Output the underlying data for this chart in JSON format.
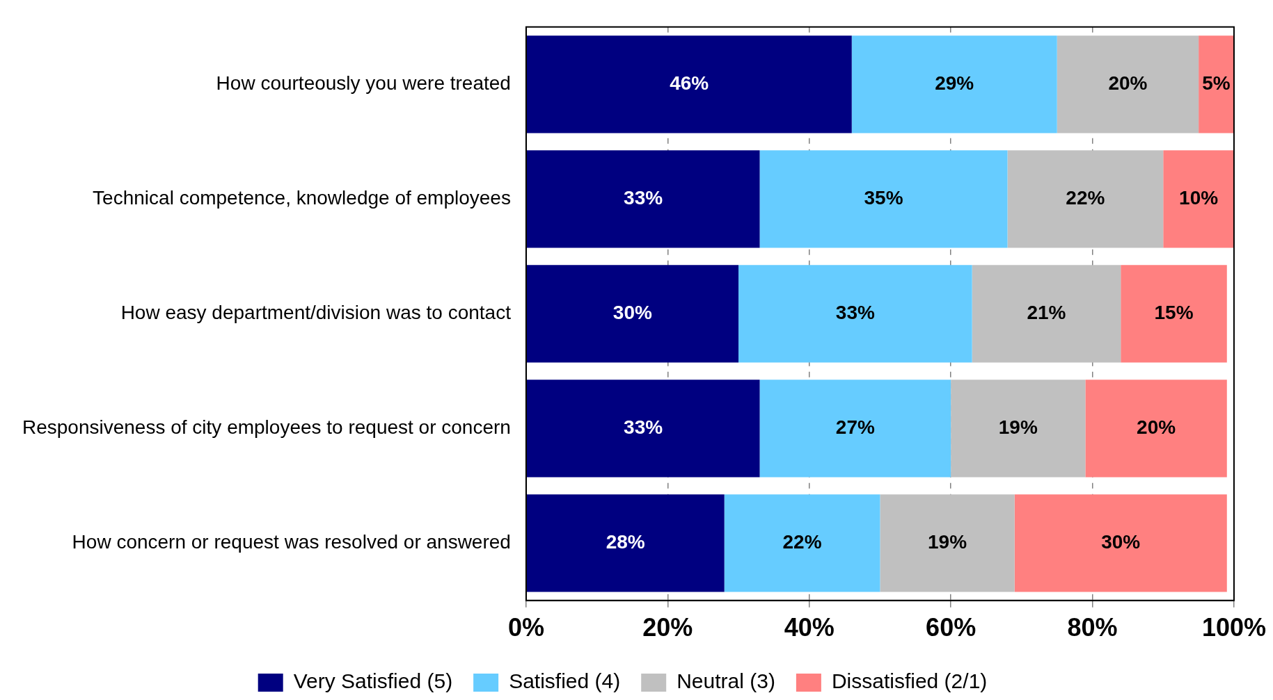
{
  "chart_data": {
    "type": "bar",
    "orientation": "horizontal",
    "stacked": true,
    "categories": [
      "How courteously you were treated",
      "Technical competence, knowledge of employees",
      "How easy department/division was to contact",
      "Responsiveness of city employees to request or concern",
      "How concern or request was resolved or answered"
    ],
    "series": [
      {
        "name": "Very Satisfied (5)",
        "color": "#000080",
        "values": [
          46,
          33,
          30,
          33,
          28
        ],
        "value_labels": [
          "46%",
          "33%",
          "30%",
          "33%",
          "28%"
        ]
      },
      {
        "name": "Satisfied (4)",
        "color": "#66ccff",
        "values": [
          29,
          35,
          33,
          27,
          22
        ],
        "value_labels": [
          "29%",
          "35%",
          "33%",
          "27%",
          "22%"
        ]
      },
      {
        "name": "Neutral (3)",
        "color": "#c0c0c0",
        "values": [
          20,
          22,
          21,
          19,
          19
        ],
        "value_labels": [
          "20%",
          "22%",
          "21%",
          "19%",
          "19%"
        ]
      },
      {
        "name": "Dissatisfied (2/1)",
        "color": "#ff8080",
        "values": [
          5,
          10,
          15,
          20,
          30
        ],
        "value_labels": [
          "5%",
          "10%",
          "15%",
          "20%",
          "30%"
        ]
      }
    ],
    "xlim": [
      0,
      100
    ],
    "xticks": [
      {
        "value": 0,
        "label": "0%"
      },
      {
        "value": 20,
        "label": "20%"
      },
      {
        "value": 40,
        "label": "40%"
      },
      {
        "value": 60,
        "label": "60%"
      },
      {
        "value": 80,
        "label": "80%"
      },
      {
        "value": 100,
        "label": "100%"
      }
    ],
    "grid": "x",
    "legend": "bottom"
  }
}
